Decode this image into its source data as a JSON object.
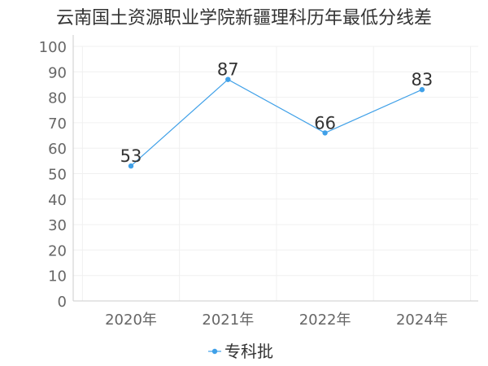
{
  "chart_data": {
    "type": "line",
    "title": "云南国土资源职业学院新疆理科历年最低分线差",
    "categories": [
      "2020年",
      "2021年",
      "2022年",
      "2024年"
    ],
    "series": [
      {
        "name": "专科批",
        "values": [
          53,
          87,
          66,
          83
        ],
        "color": "#3fa0e8"
      }
    ],
    "ylim": [
      0,
      100
    ],
    "yticks": [
      0,
      10,
      20,
      30,
      40,
      50,
      60,
      70,
      80,
      90,
      100
    ],
    "grid": true,
    "legend_position": "bottom"
  }
}
